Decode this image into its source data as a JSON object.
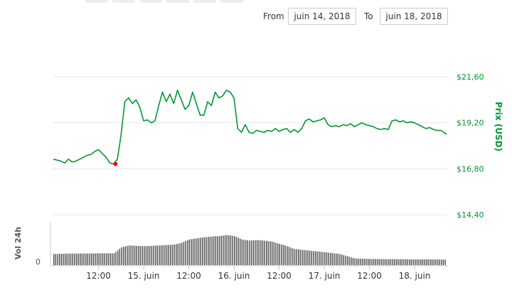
{
  "range_selector": {
    "from_label": "From",
    "from_value": "juin 14, 2018",
    "to_label": "To",
    "to_value": "juin 18, 2018"
  },
  "colors": {
    "price_line": "#009933",
    "marker": "#ff0000",
    "volume_bar": "#555555",
    "grid": "#e6e6e6",
    "axis_label": "#009933"
  },
  "chart_data": [
    {
      "type": "line",
      "title": "",
      "ylabel": "Prix (USD)",
      "ylim": [
        14.4,
        21.6
      ],
      "yticks": [
        "$21,60",
        "$19,20",
        "$16,80",
        "$14,40"
      ],
      "ytick_values": [
        21.6,
        19.2,
        16.8,
        14.4
      ],
      "xlim": [
        0,
        104.5
      ],
      "xticks": [
        "12:00",
        "15. juin",
        "12:00",
        "16. juin",
        "12:00",
        "17. juin",
        "12:00",
        "18. juin"
      ],
      "xtick_hours": [
        12,
        24,
        36,
        48,
        60,
        72,
        84,
        96
      ],
      "x_unit": "hours since 2018-06-14 00:00",
      "series": [
        {
          "name": "Prix",
          "x": [
            0,
            1,
            2,
            3,
            4,
            5,
            6,
            7,
            8,
            9,
            10,
            11,
            12,
            13,
            14,
            15,
            16,
            17,
            17.5,
            18,
            19,
            20,
            21,
            22,
            23,
            24,
            25,
            26,
            27,
            28,
            29,
            30,
            31,
            32,
            33,
            34,
            35,
            36,
            37,
            38,
            39,
            40,
            41,
            42,
            43,
            44,
            45,
            46,
            47,
            48,
            49,
            50,
            51,
            52,
            53,
            54,
            55,
            56,
            57,
            58,
            59,
            60,
            61,
            62,
            63,
            64,
            65,
            66,
            67,
            68,
            69,
            70,
            71,
            72,
            73,
            74,
            75,
            76,
            77,
            78,
            79,
            80,
            81,
            82,
            83,
            84,
            85,
            86,
            87,
            88,
            89,
            90,
            91,
            92,
            93,
            94,
            95,
            96,
            97,
            98,
            99,
            100,
            101,
            102,
            103,
            104.5
          ],
          "values": [
            17.3,
            17.25,
            17.2,
            17.1,
            17.3,
            17.15,
            17.2,
            17.3,
            17.4,
            17.5,
            17.55,
            17.7,
            17.8,
            17.6,
            17.4,
            17.1,
            17.05,
            17.3,
            17.9,
            18.6,
            20.3,
            20.5,
            20.2,
            20.4,
            20.0,
            19.3,
            19.35,
            19.2,
            19.3,
            20.1,
            20.8,
            20.3,
            20.7,
            20.2,
            20.9,
            20.4,
            19.9,
            20.1,
            20.8,
            20.2,
            19.6,
            19.6,
            20.3,
            20.1,
            20.8,
            20.5,
            20.6,
            20.9,
            20.8,
            20.5,
            18.9,
            18.7,
            19.1,
            18.7,
            18.65,
            18.8,
            18.75,
            18.7,
            18.8,
            18.75,
            18.9,
            18.75,
            18.85,
            18.9,
            18.7,
            18.85,
            18.7,
            18.9,
            19.3,
            19.4,
            19.25,
            19.3,
            19.35,
            19.45,
            19.1,
            19.0,
            19.05,
            19.0,
            19.1,
            19.05,
            19.15,
            19.0,
            19.1,
            19.2,
            19.1,
            19.05,
            19.0,
            18.9,
            18.85,
            18.9,
            18.85,
            19.3,
            19.35,
            19.25,
            19.3,
            19.2,
            19.25,
            19.2,
            19.1,
            19.0,
            18.9,
            18.95,
            18.85,
            18.8,
            18.8,
            18.6
          ]
        }
      ],
      "marker": {
        "x": 16.5,
        "y": 17.05
      }
    },
    {
      "type": "bar",
      "title": "",
      "ylabel": "Vol 24h",
      "yticks": [
        "0"
      ],
      "ylim": [
        0,
        1.5
      ],
      "x_unit": "hours since 2018-06-14 00:00",
      "series": [
        {
          "name": "Vol 24h",
          "x": [
            0,
            4,
            8,
            12,
            16,
            18,
            20,
            24,
            28,
            32,
            34,
            36,
            40,
            42,
            44,
            46,
            48,
            50,
            52,
            54,
            56,
            58,
            60,
            62,
            64,
            68,
            72,
            76,
            80,
            84,
            88,
            92,
            96,
            100,
            104
          ],
          "values": [
            0.5,
            0.52,
            0.52,
            0.53,
            0.53,
            0.8,
            0.88,
            0.85,
            0.88,
            0.92,
            1.0,
            1.15,
            1.25,
            1.28,
            1.3,
            1.35,
            1.3,
            1.15,
            1.1,
            1.12,
            1.1,
            1.05,
            0.95,
            0.85,
            0.72,
            0.65,
            0.58,
            0.5,
            0.3,
            0.28,
            0.27,
            0.27,
            0.26,
            0.26,
            0.25
          ]
        }
      ]
    }
  ]
}
